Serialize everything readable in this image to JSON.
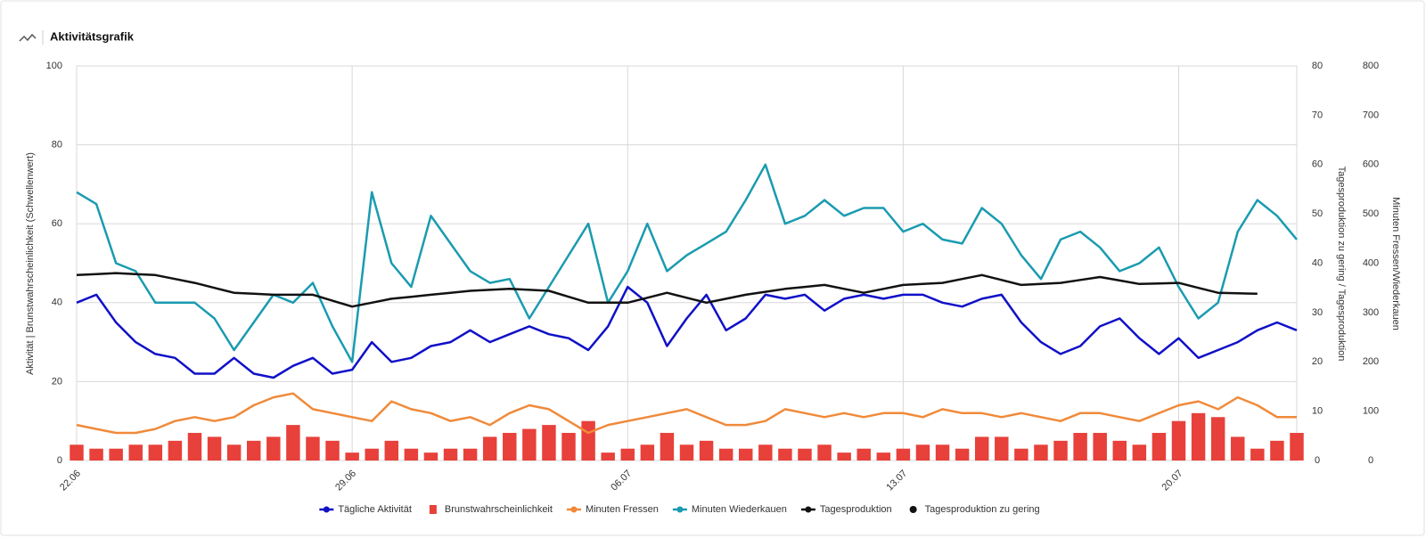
{
  "chart_data": {
    "type": "combo",
    "title": "Aktivitätsgrafik",
    "ylabel": "Aktivität | Brunstwahrscheinlichkeit (Schwellenwert)",
    "y2label": "Tagesproduktion zu gering / Tagesproduktion",
    "y3label": "Minuten Fressen/Wiederkauen",
    "categories": [
      "22.06",
      null,
      null,
      null,
      null,
      null,
      null,
      null,
      null,
      null,
      null,
      null,
      null,
      null,
      "29.06",
      null,
      null,
      null,
      null,
      null,
      null,
      null,
      null,
      null,
      null,
      null,
      null,
      null,
      "06.07",
      null,
      null,
      null,
      null,
      null,
      null,
      null,
      null,
      null,
      null,
      null,
      null,
      null,
      "13.07",
      null,
      null,
      null,
      null,
      null,
      null,
      null,
      null,
      null,
      null,
      null,
      null,
      null,
      "20.07",
      null,
      null,
      null,
      null,
      null,
      null
    ],
    "ylim": [
      0,
      100
    ],
    "yticks": [
      0,
      20,
      40,
      60,
      80,
      100
    ],
    "y2lim": [
      0,
      80
    ],
    "y2ticks": [
      0,
      10,
      20,
      30,
      40,
      50,
      60,
      70,
      80
    ],
    "y3lim": [
      0,
      800
    ],
    "y3ticks": [
      0,
      100,
      200,
      300,
      400,
      500,
      600,
      700,
      800
    ],
    "grid": true,
    "legend": "bottom",
    "series": [
      {
        "name": "Tägliche Aktivität",
        "type": "line",
        "axis": "y",
        "color": "#1010c8",
        "values": [
          40,
          42,
          35,
          30,
          27,
          26,
          22,
          22,
          26,
          22,
          21,
          24,
          26,
          22,
          23,
          30,
          25,
          26,
          29,
          30,
          33,
          30,
          32,
          34,
          32,
          31,
          28,
          34,
          44,
          40,
          29,
          36,
          42,
          33,
          36,
          42,
          41,
          42,
          38,
          41,
          42,
          41,
          42,
          42,
          40,
          39,
          41,
          42,
          35,
          30,
          27,
          29,
          34,
          36,
          31,
          27,
          31,
          26,
          28,
          30,
          33,
          35,
          33
        ]
      },
      {
        "name": "Brunstwahrscheinlichkeit",
        "type": "bar",
        "axis": "y",
        "color": "#e8403a",
        "values": [
          4,
          3,
          3,
          4,
          4,
          5,
          7,
          6,
          4,
          5,
          6,
          9,
          6,
          5,
          2,
          3,
          5,
          3,
          2,
          3,
          3,
          6,
          7,
          8,
          9,
          7,
          10,
          2,
          3,
          4,
          7,
          4,
          5,
          3,
          3,
          4,
          3,
          3,
          4,
          2,
          3,
          2,
          3,
          4,
          4,
          3,
          6,
          6,
          3,
          4,
          5,
          7,
          7,
          5,
          4,
          7,
          10,
          12,
          11,
          6,
          3,
          5,
          7
        ]
      },
      {
        "name": "Minuten Fressen",
        "type": "line",
        "axis": "y3",
        "color": "#f08a3a",
        "values": [
          72,
          64,
          56,
          56,
          64,
          80,
          88,
          80,
          88,
          112,
          128,
          136,
          104,
          96,
          88,
          80,
          120,
          104,
          96,
          80,
          88,
          72,
          96,
          112,
          104,
          80,
          56,
          72,
          80,
          88,
          96,
          104,
          88,
          72,
          72,
          80,
          104,
          96,
          88,
          96,
          88,
          96,
          96,
          88,
          104,
          96,
          96,
          88,
          96,
          88,
          80,
          96,
          96,
          88,
          80,
          96,
          112,
          120,
          104,
          128,
          112,
          88,
          88
        ]
      },
      {
        "name": "Minuten Wiederkauen",
        "type": "line",
        "axis": "y3",
        "color": "#1a9bb0",
        "values": [
          544,
          520,
          400,
          384,
          320,
          320,
          320,
          288,
          224,
          280,
          336,
          320,
          360,
          272,
          200,
          544,
          400,
          352,
          496,
          440,
          384,
          360,
          368,
          288,
          352,
          416,
          480,
          320,
          384,
          480,
          384,
          416,
          440,
          464,
          528,
          600,
          480,
          496,
          528,
          496,
          512,
          512,
          464,
          480,
          448,
          440,
          512,
          480,
          416,
          368,
          448,
          464,
          432,
          384,
          400,
          432,
          352,
          288,
          320,
          464,
          528,
          496,
          448
        ]
      },
      {
        "name": "Tagesproduktion",
        "type": "line",
        "axis": "y2",
        "color": "#111111",
        "values": [
          37.6,
          37.8,
          38,
          37.8,
          37.6,
          36.8,
          36,
          35,
          34,
          33.8,
          33.6,
          33.6,
          33.6,
          32.4,
          31.2,
          32,
          32.8,
          33.2,
          33.6,
          34,
          34.4,
          34.6,
          34.8,
          34.6,
          34.4,
          33.2,
          32,
          32,
          32,
          33,
          34,
          33,
          32,
          32.8,
          33.6,
          34.2,
          34.8,
          35.2,
          35.6,
          34.8,
          34,
          34.8,
          35.6,
          35.8,
          36,
          36.8,
          37.6,
          36.6,
          35.6,
          35.8,
          36,
          36.6,
          37.2,
          36.5,
          35.8,
          35.9,
          36,
          35,
          34,
          33.9,
          33.8,
          null,
          null
        ]
      },
      {
        "name": "Tagesproduktion zu gering",
        "type": "point",
        "axis": "y2",
        "color": "#111111"
      }
    ]
  }
}
